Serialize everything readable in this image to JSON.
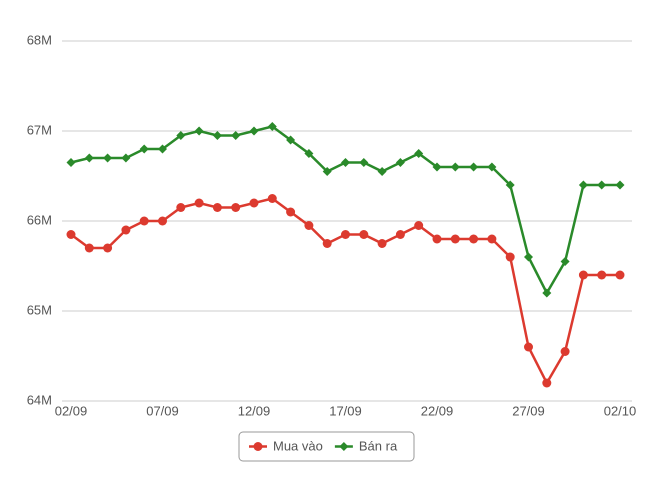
{
  "chart_data": {
    "type": "line",
    "categories": [
      "02/09",
      null,
      null,
      null,
      null,
      "07/09",
      null,
      null,
      null,
      null,
      "12/09",
      null,
      null,
      null,
      null,
      "17/09",
      null,
      null,
      null,
      null,
      "22/09",
      null,
      null,
      null,
      null,
      "27/09",
      null,
      null,
      null,
      null,
      "02/10"
    ],
    "series": [
      {
        "name": "Mua vào",
        "color": "#dc3a2f",
        "marker": "circle",
        "values": [
          65850000,
          65700000,
          65700000,
          65900000,
          66000000,
          66000000,
          66150000,
          66200000,
          66150000,
          66150000,
          66200000,
          66250000,
          66100000,
          65950000,
          65750000,
          65850000,
          65850000,
          65750000,
          65850000,
          65950000,
          65800000,
          65800000,
          65800000,
          65800000,
          65600000,
          64600000,
          64200000,
          64550000,
          65400000,
          65400000,
          65400000
        ]
      },
      {
        "name": "Bán ra",
        "color": "#2a8a2a",
        "marker": "diamond",
        "values": [
          66650000,
          66700000,
          66700000,
          66700000,
          66800000,
          66800000,
          66950000,
          67000000,
          66950000,
          66950000,
          67000000,
          67050000,
          66900000,
          66750000,
          66550000,
          66650000,
          66650000,
          66550000,
          66650000,
          66750000,
          66600000,
          66600000,
          66600000,
          66600000,
          66400000,
          65600000,
          65200000,
          65550000,
          66400000,
          66400000,
          66400000
        ]
      }
    ],
    "ylim": [
      64000000,
      68000000
    ],
    "yticks": [
      {
        "value": 64000000,
        "label": "64M"
      },
      {
        "value": 65000000,
        "label": "65M"
      },
      {
        "value": 66000000,
        "label": "66M"
      },
      {
        "value": 67000000,
        "label": "67M"
      },
      {
        "value": 68000000,
        "label": "68M"
      }
    ],
    "grid": true,
    "legend": "bottom"
  }
}
